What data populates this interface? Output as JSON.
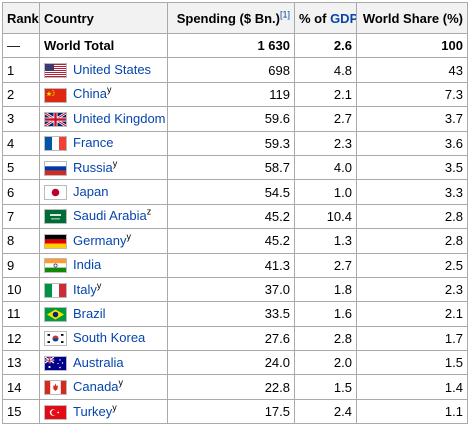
{
  "headers": {
    "rank": "Rank",
    "country": "Country",
    "spending": "Spending ($ Bn.)",
    "spending_ref": "[1]",
    "gdp_prefix": "% of ",
    "gdp_link": "GDP",
    "share": "World Share (%)"
  },
  "total": {
    "rank": "—",
    "label": "World Total",
    "spending": "1 630",
    "gdp": "2.6",
    "share": "100"
  },
  "rows": [
    {
      "rank": "1",
      "country": "United States",
      "sup": "",
      "spending": "698",
      "gdp": "4.8",
      "share": "43",
      "flag": "us-flag-icon"
    },
    {
      "rank": "2",
      "country": "China",
      "sup": "y",
      "spending": "119",
      "gdp": "2.1",
      "share": "7.3",
      "flag": "china-flag-icon"
    },
    {
      "rank": "3",
      "country": "United Kingdom",
      "sup": "",
      "spending": "59.6",
      "gdp": "2.7",
      "share": "3.7",
      "flag": "uk-flag-icon"
    },
    {
      "rank": "4",
      "country": "France",
      "sup": "",
      "spending": "59.3",
      "gdp": "2.3",
      "share": "3.6",
      "flag": "france-flag-icon"
    },
    {
      "rank": "5",
      "country": "Russia",
      "sup": "y",
      "spending": "58.7",
      "gdp": "4.0",
      "share": "3.5",
      "flag": "russia-flag-icon"
    },
    {
      "rank": "6",
      "country": "Japan",
      "sup": "",
      "spending": "54.5",
      "gdp": "1.0",
      "share": "3.3",
      "flag": "japan-flag-icon"
    },
    {
      "rank": "7",
      "country": "Saudi Arabia",
      "sup": "z",
      "spending": "45.2",
      "gdp": "10.4",
      "share": "2.8",
      "flag": "saudi-arabia-flag-icon"
    },
    {
      "rank": "8",
      "country": "Germany",
      "sup": "y",
      "spending": "45.2",
      "gdp": "1.3",
      "share": "2.8",
      "flag": "germany-flag-icon"
    },
    {
      "rank": "9",
      "country": "India",
      "sup": "",
      "spending": "41.3",
      "gdp": "2.7",
      "share": "2.5",
      "flag": "india-flag-icon"
    },
    {
      "rank": "10",
      "country": "Italy",
      "sup": "y",
      "spending": "37.0",
      "gdp": "1.8",
      "share": "2.3",
      "flag": "italy-flag-icon"
    },
    {
      "rank": "11",
      "country": "Brazil",
      "sup": "",
      "spending": "33.5",
      "gdp": "1.6",
      "share": "2.1",
      "flag": "brazil-flag-icon"
    },
    {
      "rank": "12",
      "country": "South Korea",
      "sup": "",
      "spending": "27.6",
      "gdp": "2.8",
      "share": "1.7",
      "flag": "south-korea-flag-icon"
    },
    {
      "rank": "13",
      "country": "Australia",
      "sup": "",
      "spending": "24.0",
      "gdp": "2.0",
      "share": "1.5",
      "flag": "australia-flag-icon"
    },
    {
      "rank": "14",
      "country": "Canada",
      "sup": "y",
      "spending": "22.8",
      "gdp": "1.5",
      "share": "1.4",
      "flag": "canada-flag-icon"
    },
    {
      "rank": "15",
      "country": "Turkey",
      "sup": "y",
      "spending": "17.5",
      "gdp": "2.4",
      "share": "1.1",
      "flag": "turkey-flag-icon"
    }
  ],
  "colors": {
    "link": "#0645ad",
    "header_bg": "#f2f2f2",
    "border": "#aaaaaa"
  }
}
